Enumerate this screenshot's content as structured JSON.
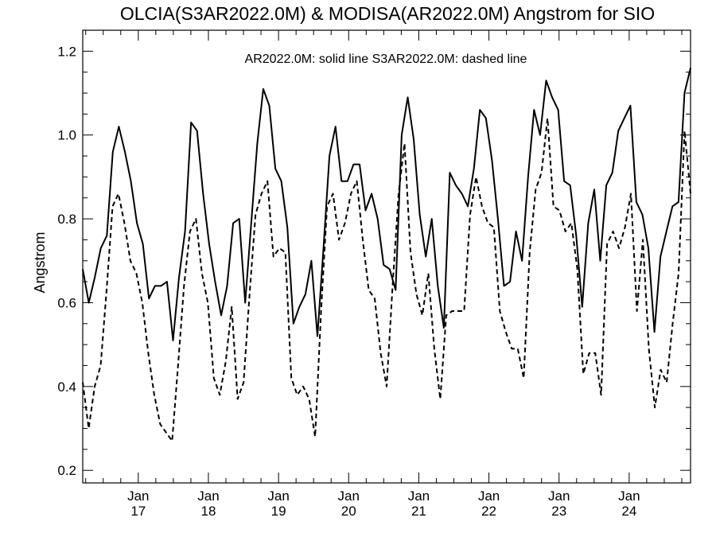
{
  "chart_data": {
    "type": "line",
    "title": "OLCIA(S3AR2022.0M) & MODISA(AR2022.0M)  Angstrom for SIO",
    "annotation": "AR2022.0M: solid line   S3AR2022.0M: dashed line",
    "ylabel": "Angstrom",
    "xlabel": "",
    "ylim": [
      0.17,
      1.25
    ],
    "xlim": [
      2016.208,
      2024.875
    ],
    "yticks": [
      "0.2",
      "0.4",
      "0.6",
      "0.8",
      "1.0",
      "1.2"
    ],
    "xticks": [
      {
        "month": "Jan",
        "year": "17"
      },
      {
        "month": "Jan",
        "year": "18"
      },
      {
        "month": "Jan",
        "year": "19"
      },
      {
        "month": "Jan",
        "year": "20"
      },
      {
        "month": "Jan",
        "year": "21"
      },
      {
        "month": "Jan",
        "year": "22"
      },
      {
        "month": "Jan",
        "year": "23"
      },
      {
        "month": "Jan",
        "year": "24"
      }
    ],
    "series": [
      {
        "name": "AR2022.0M",
        "style": "solid",
        "values": [
          0.68,
          0.6,
          0.66,
          0.73,
          0.76,
          0.96,
          1.02,
          0.96,
          0.89,
          0.79,
          0.74,
          0.61,
          0.64,
          0.64,
          0.65,
          0.51,
          0.66,
          0.77,
          1.03,
          1.01,
          0.86,
          0.74,
          0.65,
          0.57,
          0.64,
          0.79,
          0.8,
          0.6,
          0.79,
          0.98,
          1.11,
          1.07,
          0.92,
          0.89,
          0.78,
          0.55,
          0.59,
          0.62,
          0.7,
          0.52,
          0.73,
          0.95,
          1.02,
          0.89,
          0.89,
          0.93,
          0.93,
          0.82,
          0.86,
          0.8,
          0.69,
          0.68,
          0.63,
          1.0,
          1.09,
          0.99,
          0.81,
          0.71,
          0.8,
          0.64,
          0.54,
          0.91,
          0.88,
          0.86,
          0.83,
          0.92,
          1.06,
          1.04,
          0.94,
          0.8,
          0.64,
          0.65,
          0.77,
          0.7,
          0.9,
          1.06,
          1.0,
          1.13,
          1.09,
          1.06,
          0.89,
          0.88,
          0.76,
          0.59,
          0.79,
          0.87,
          0.7,
          0.88,
          0.91,
          1.01,
          1.04,
          1.07,
          0.84,
          0.81,
          0.73,
          0.53,
          0.71,
          0.77,
          0.83,
          0.84,
          1.1,
          1.16
        ]
      },
      {
        "name": "S3AR2022.0M",
        "style": "dashed",
        "values": [
          0.41,
          0.3,
          0.4,
          0.45,
          0.63,
          0.83,
          0.86,
          0.79,
          0.7,
          0.67,
          0.6,
          0.48,
          0.38,
          0.31,
          0.29,
          0.27,
          0.45,
          0.64,
          0.77,
          0.8,
          0.67,
          0.6,
          0.42,
          0.38,
          0.46,
          0.59,
          0.37,
          0.41,
          0.62,
          0.81,
          0.86,
          0.89,
          0.71,
          0.73,
          0.72,
          0.42,
          0.38,
          0.4,
          0.37,
          0.28,
          0.58,
          0.83,
          0.86,
          0.75,
          0.79,
          0.86,
          0.89,
          0.75,
          0.63,
          0.61,
          0.48,
          0.4,
          0.64,
          0.86,
          0.98,
          0.72,
          0.62,
          0.57,
          0.67,
          0.49,
          0.37,
          0.57,
          0.58,
          0.58,
          0.58,
          0.81,
          0.9,
          0.83,
          0.79,
          0.78,
          0.58,
          0.53,
          0.49,
          0.49,
          0.42,
          0.72,
          0.87,
          0.91,
          1.04,
          0.83,
          0.82,
          0.77,
          0.79,
          0.68,
          0.43,
          0.48,
          0.48,
          0.38,
          0.74,
          0.77,
          0.73,
          0.78,
          0.86,
          0.58,
          0.75,
          0.49,
          0.35,
          0.44,
          0.41,
          0.55,
          0.67,
          1.01,
          0.86
        ]
      }
    ]
  }
}
